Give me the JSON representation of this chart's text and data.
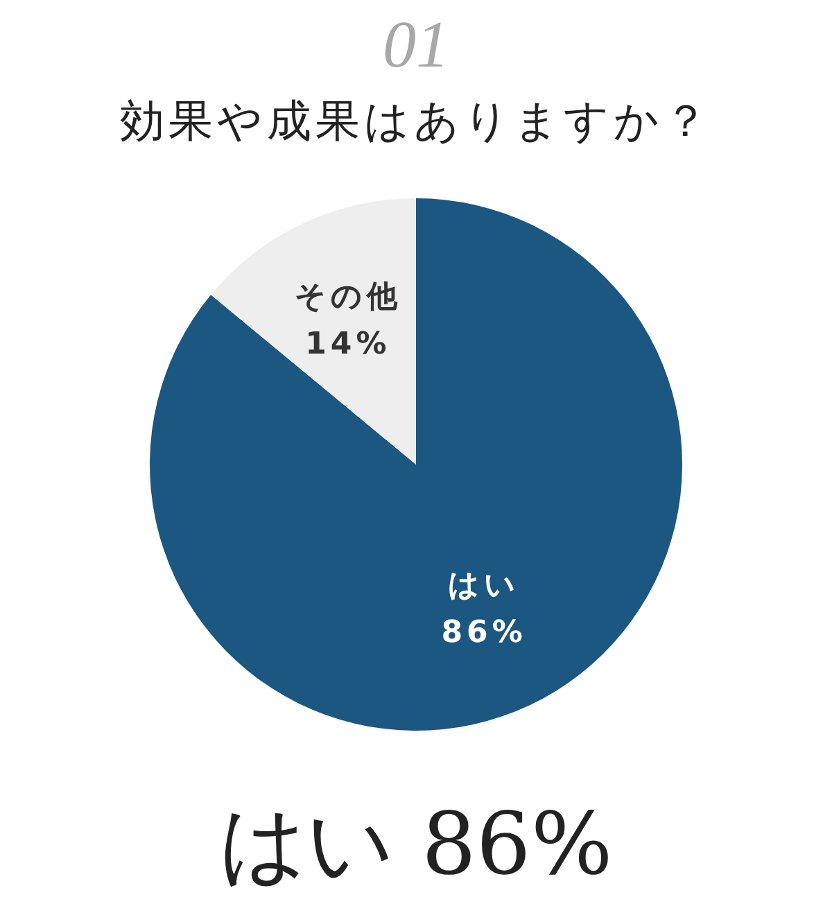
{
  "chart_data": {
    "type": "pie",
    "title": "効果や成果はありますか？",
    "categories": [
      "はい",
      "その他"
    ],
    "values": [
      86,
      14
    ],
    "colors": [
      "#1b5781",
      "#eeeeee"
    ],
    "value_labels": [
      "86%",
      "14%"
    ],
    "annotations": [
      "01",
      "はい 86%"
    ]
  }
}
